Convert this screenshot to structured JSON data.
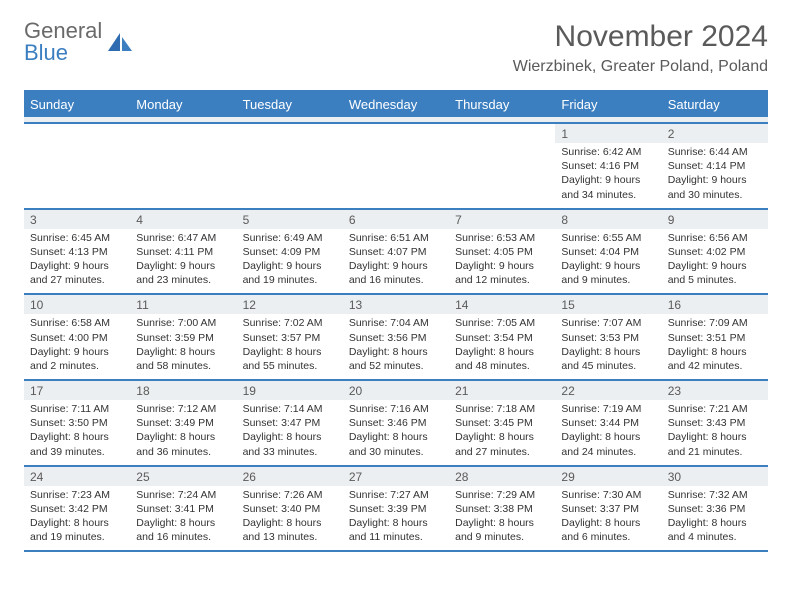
{
  "brand": {
    "word1": "General",
    "word2": "Blue"
  },
  "title": {
    "month": "November 2024",
    "location": "Wierzbinek, Greater Poland, Poland"
  },
  "colors": {
    "accent": "#3c7fc1",
    "header_bg": "#3c7fc1",
    "daynum_bg": "#eceff1",
    "text": "#333333",
    "muted": "#5a5a5a"
  },
  "dayHeaders": [
    "Sunday",
    "Monday",
    "Tuesday",
    "Wednesday",
    "Thursday",
    "Friday",
    "Saturday"
  ],
  "weeks": [
    [
      null,
      null,
      null,
      null,
      null,
      {
        "n": "1",
        "sr": "Sunrise: 6:42 AM",
        "ss": "Sunset: 4:16 PM",
        "d1": "Daylight: 9 hours",
        "d2": "and 34 minutes."
      },
      {
        "n": "2",
        "sr": "Sunrise: 6:44 AM",
        "ss": "Sunset: 4:14 PM",
        "d1": "Daylight: 9 hours",
        "d2": "and 30 minutes."
      }
    ],
    [
      {
        "n": "3",
        "sr": "Sunrise: 6:45 AM",
        "ss": "Sunset: 4:13 PM",
        "d1": "Daylight: 9 hours",
        "d2": "and 27 minutes."
      },
      {
        "n": "4",
        "sr": "Sunrise: 6:47 AM",
        "ss": "Sunset: 4:11 PM",
        "d1": "Daylight: 9 hours",
        "d2": "and 23 minutes."
      },
      {
        "n": "5",
        "sr": "Sunrise: 6:49 AM",
        "ss": "Sunset: 4:09 PM",
        "d1": "Daylight: 9 hours",
        "d2": "and 19 minutes."
      },
      {
        "n": "6",
        "sr": "Sunrise: 6:51 AM",
        "ss": "Sunset: 4:07 PM",
        "d1": "Daylight: 9 hours",
        "d2": "and 16 minutes."
      },
      {
        "n": "7",
        "sr": "Sunrise: 6:53 AM",
        "ss": "Sunset: 4:05 PM",
        "d1": "Daylight: 9 hours",
        "d2": "and 12 minutes."
      },
      {
        "n": "8",
        "sr": "Sunrise: 6:55 AM",
        "ss": "Sunset: 4:04 PM",
        "d1": "Daylight: 9 hours",
        "d2": "and 9 minutes."
      },
      {
        "n": "9",
        "sr": "Sunrise: 6:56 AM",
        "ss": "Sunset: 4:02 PM",
        "d1": "Daylight: 9 hours",
        "d2": "and 5 minutes."
      }
    ],
    [
      {
        "n": "10",
        "sr": "Sunrise: 6:58 AM",
        "ss": "Sunset: 4:00 PM",
        "d1": "Daylight: 9 hours",
        "d2": "and 2 minutes."
      },
      {
        "n": "11",
        "sr": "Sunrise: 7:00 AM",
        "ss": "Sunset: 3:59 PM",
        "d1": "Daylight: 8 hours",
        "d2": "and 58 minutes."
      },
      {
        "n": "12",
        "sr": "Sunrise: 7:02 AM",
        "ss": "Sunset: 3:57 PM",
        "d1": "Daylight: 8 hours",
        "d2": "and 55 minutes."
      },
      {
        "n": "13",
        "sr": "Sunrise: 7:04 AM",
        "ss": "Sunset: 3:56 PM",
        "d1": "Daylight: 8 hours",
        "d2": "and 52 minutes."
      },
      {
        "n": "14",
        "sr": "Sunrise: 7:05 AM",
        "ss": "Sunset: 3:54 PM",
        "d1": "Daylight: 8 hours",
        "d2": "and 48 minutes."
      },
      {
        "n": "15",
        "sr": "Sunrise: 7:07 AM",
        "ss": "Sunset: 3:53 PM",
        "d1": "Daylight: 8 hours",
        "d2": "and 45 minutes."
      },
      {
        "n": "16",
        "sr": "Sunrise: 7:09 AM",
        "ss": "Sunset: 3:51 PM",
        "d1": "Daylight: 8 hours",
        "d2": "and 42 minutes."
      }
    ],
    [
      {
        "n": "17",
        "sr": "Sunrise: 7:11 AM",
        "ss": "Sunset: 3:50 PM",
        "d1": "Daylight: 8 hours",
        "d2": "and 39 minutes."
      },
      {
        "n": "18",
        "sr": "Sunrise: 7:12 AM",
        "ss": "Sunset: 3:49 PM",
        "d1": "Daylight: 8 hours",
        "d2": "and 36 minutes."
      },
      {
        "n": "19",
        "sr": "Sunrise: 7:14 AM",
        "ss": "Sunset: 3:47 PM",
        "d1": "Daylight: 8 hours",
        "d2": "and 33 minutes."
      },
      {
        "n": "20",
        "sr": "Sunrise: 7:16 AM",
        "ss": "Sunset: 3:46 PM",
        "d1": "Daylight: 8 hours",
        "d2": "and 30 minutes."
      },
      {
        "n": "21",
        "sr": "Sunrise: 7:18 AM",
        "ss": "Sunset: 3:45 PM",
        "d1": "Daylight: 8 hours",
        "d2": "and 27 minutes."
      },
      {
        "n": "22",
        "sr": "Sunrise: 7:19 AM",
        "ss": "Sunset: 3:44 PM",
        "d1": "Daylight: 8 hours",
        "d2": "and 24 minutes."
      },
      {
        "n": "23",
        "sr": "Sunrise: 7:21 AM",
        "ss": "Sunset: 3:43 PM",
        "d1": "Daylight: 8 hours",
        "d2": "and 21 minutes."
      }
    ],
    [
      {
        "n": "24",
        "sr": "Sunrise: 7:23 AM",
        "ss": "Sunset: 3:42 PM",
        "d1": "Daylight: 8 hours",
        "d2": "and 19 minutes."
      },
      {
        "n": "25",
        "sr": "Sunrise: 7:24 AM",
        "ss": "Sunset: 3:41 PM",
        "d1": "Daylight: 8 hours",
        "d2": "and 16 minutes."
      },
      {
        "n": "26",
        "sr": "Sunrise: 7:26 AM",
        "ss": "Sunset: 3:40 PM",
        "d1": "Daylight: 8 hours",
        "d2": "and 13 minutes."
      },
      {
        "n": "27",
        "sr": "Sunrise: 7:27 AM",
        "ss": "Sunset: 3:39 PM",
        "d1": "Daylight: 8 hours",
        "d2": "and 11 minutes."
      },
      {
        "n": "28",
        "sr": "Sunrise: 7:29 AM",
        "ss": "Sunset: 3:38 PM",
        "d1": "Daylight: 8 hours",
        "d2": "and 9 minutes."
      },
      {
        "n": "29",
        "sr": "Sunrise: 7:30 AM",
        "ss": "Sunset: 3:37 PM",
        "d1": "Daylight: 8 hours",
        "d2": "and 6 minutes."
      },
      {
        "n": "30",
        "sr": "Sunrise: 7:32 AM",
        "ss": "Sunset: 3:36 PM",
        "d1": "Daylight: 8 hours",
        "d2": "and 4 minutes."
      }
    ]
  ]
}
